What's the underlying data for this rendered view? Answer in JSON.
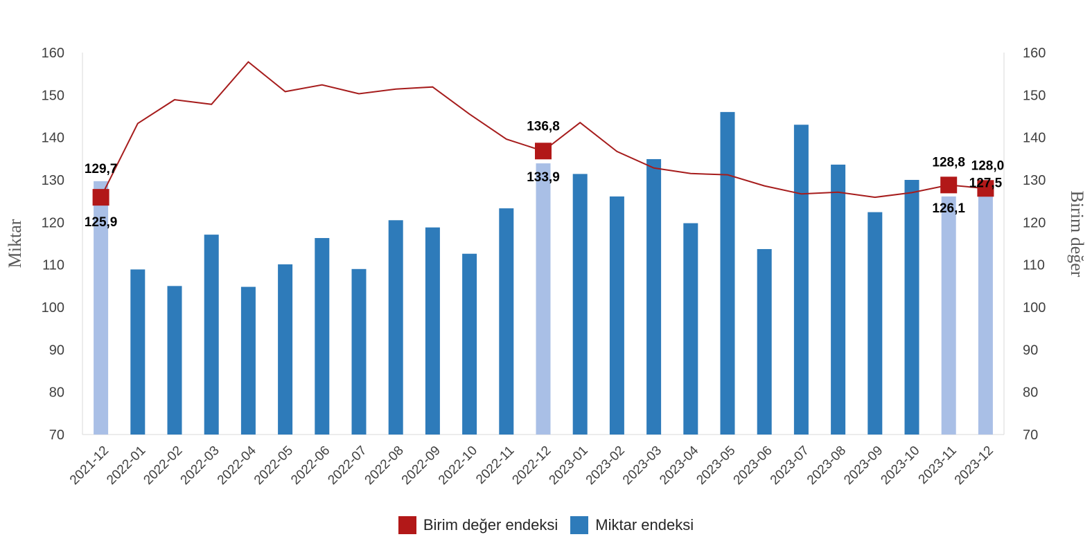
{
  "colors": {
    "line": "#A61C1C",
    "marker": "#B21818",
    "bar": "#2E7BBA",
    "bar_highlight": "#A9BFE6",
    "axis": "#D9D9D9"
  },
  "legend": {
    "line_label": "Birim değer endeksi",
    "bar_label": "Miktar endeksi"
  },
  "chart_data": {
    "type": "bar",
    "title": "",
    "xlabel": "",
    "ylabel": "Miktar",
    "y2label": "Birim değer",
    "ylim": [
      70,
      160
    ],
    "y2lim": [
      70,
      160
    ],
    "yticks": [
      70,
      80,
      90,
      100,
      110,
      120,
      130,
      140,
      150,
      160
    ],
    "grid": false,
    "legend_position": "bottom",
    "categories": [
      "2021-12",
      "2022-01",
      "2022-02",
      "2022-03",
      "2022-04",
      "2022-05",
      "2022-06",
      "2022-07",
      "2022-08",
      "2022-09",
      "2022-10",
      "2022-11",
      "2022-12",
      "2023-01",
      "2023-02",
      "2023-03",
      "2023-04",
      "2023-05",
      "2023-06",
      "2023-07",
      "2023-08",
      "2023-09",
      "2023-10",
      "2023-11",
      "2023-12"
    ],
    "series": [
      {
        "name": "Miktar endeksi",
        "type": "bar",
        "axis": "left",
        "values": [
          129.7,
          108.9,
          105.0,
          117.1,
          104.8,
          110.1,
          116.3,
          109.0,
          120.5,
          118.8,
          112.6,
          123.3,
          133.9,
          131.4,
          126.1,
          134.9,
          119.8,
          146.0,
          113.7,
          143.0,
          133.6,
          122.4,
          130.0,
          126.1,
          127.5
        ],
        "highlighted": [
          0,
          12,
          23,
          24
        ]
      },
      {
        "name": "Birim değer endeksi",
        "type": "line",
        "axis": "right",
        "values": [
          125.9,
          143.3,
          148.9,
          147.8,
          157.8,
          150.8,
          152.4,
          150.3,
          151.4,
          151.9,
          145.5,
          139.6,
          136.8,
          143.5,
          136.7,
          132.8,
          131.5,
          131.2,
          128.6,
          126.7,
          127.1,
          125.9,
          127.0,
          128.8,
          128.0
        ],
        "markers": [
          0,
          12,
          23,
          24
        ]
      }
    ],
    "data_labels": [
      {
        "text": "129,7",
        "category": "2021-12",
        "series": "Miktar endeksi"
      },
      {
        "text": "125,9",
        "category": "2021-12",
        "series": "Birim değer endeksi"
      },
      {
        "text": "136,8",
        "category": "2022-12",
        "series": "Birim değer endeksi"
      },
      {
        "text": "133,9",
        "category": "2022-12",
        "series": "Miktar endeksi"
      },
      {
        "text": "128,8",
        "category": "2023-11",
        "series": "Birim değer endeksi"
      },
      {
        "text": "126,1",
        "category": "2023-11",
        "series": "Miktar endeksi"
      },
      {
        "text": "128,0",
        "category": "2023-12",
        "series": "Birim değer endeksi"
      },
      {
        "text": "127,5",
        "category": "2023-12",
        "series": "Miktar endeksi"
      }
    ]
  }
}
